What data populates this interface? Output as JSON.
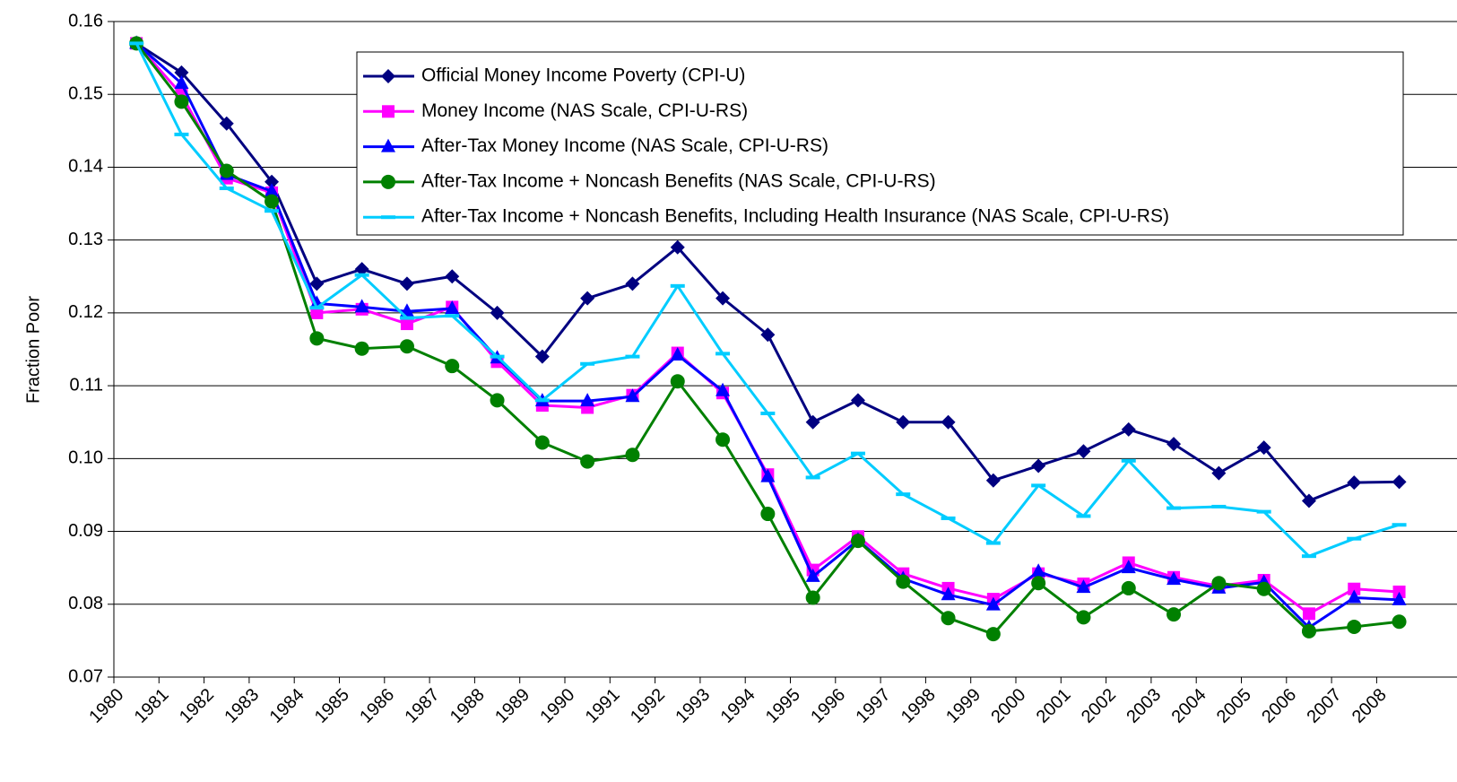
{
  "chart_data": {
    "type": "line",
    "y_label": "Fraction Poor",
    "categories": [
      "1980",
      "1981",
      "1982",
      "1983",
      "1984",
      "1985",
      "1986",
      "1987",
      "1988",
      "1989",
      "1990",
      "1991",
      "1992",
      "1993",
      "1994",
      "1995",
      "1996",
      "1997",
      "1998",
      "1999",
      "2000",
      "2001",
      "2002",
      "2003",
      "2004",
      "2005",
      "2006",
      "2007",
      "2008"
    ],
    "ylim": [
      0.07,
      0.16
    ],
    "yticks": [
      0.07,
      0.08,
      0.09,
      {
        "value": 0.1,
        "label": "0.10"
      },
      0.11,
      0.12,
      0.13,
      0.14,
      0.15,
      0.16
    ],
    "grid": true,
    "legend": "top-right",
    "series": [
      {
        "name": "Official Money Income Poverty (CPI-U)",
        "color": "#000080",
        "marker": "diamond",
        "values": [
          0.157,
          0.153,
          0.146,
          0.138,
          0.124,
          0.126,
          0.124,
          0.125,
          0.12,
          0.114,
          0.122,
          0.124,
          0.129,
          0.122,
          0.117,
          0.105,
          0.108,
          0.105,
          0.105,
          0.097,
          0.099,
          0.101,
          0.104,
          0.102,
          0.098,
          0.1015,
          0.0942,
          0.0967,
          0.0968
        ]
      },
      {
        "name": "Money Income (NAS Scale, CPI-U-RS)",
        "color": "#ff00ff",
        "marker": "square",
        "values": [
          0.157,
          0.15,
          0.1385,
          0.1365,
          0.12,
          0.1205,
          0.1185,
          0.1208,
          0.1133,
          0.1073,
          0.107,
          0.1087,
          0.1145,
          0.109,
          0.0978,
          0.0847,
          0.0893,
          0.0842,
          0.0822,
          0.0807,
          0.0842,
          0.0828,
          0.0857,
          0.0837,
          0.0825,
          0.0833,
          0.0787,
          0.0821,
          0.0817
        ]
      },
      {
        "name": "After-Tax Money Income (NAS Scale, CPI-U-RS)",
        "color": "#0000ff",
        "marker": "triangle",
        "values": [
          0.157,
          0.1515,
          0.139,
          0.1367,
          0.1213,
          0.1208,
          0.1202,
          0.1206,
          0.1138,
          0.1079,
          0.1079,
          0.1085,
          0.1142,
          0.1093,
          0.0975,
          0.0838,
          0.0888,
          0.0835,
          0.0813,
          0.0799,
          0.0845,
          0.0823,
          0.085,
          0.0834,
          0.0822,
          0.083,
          0.0768,
          0.0809,
          0.0806
        ]
      },
      {
        "name": "After-Tax Income + Noncash Benefits (NAS Scale, CPI-U-RS)",
        "color": "#008000",
        "marker": "circle",
        "values": [
          0.157,
          0.149,
          0.1395,
          0.1353,
          0.1165,
          0.1151,
          0.1154,
          0.1127,
          0.108,
          0.1022,
          0.0996,
          0.1005,
          0.1106,
          0.1026,
          0.0924,
          0.0809,
          0.0887,
          0.0831,
          0.0781,
          0.0759,
          0.0829,
          0.0782,
          0.0822,
          0.0786,
          0.0829,
          0.0821,
          0.0763,
          0.0769,
          0.0776
        ]
      },
      {
        "name": "After-Tax Income + Noncash Benefits, Including Health Insurance (NAS Scale, CPI-U-RS)",
        "color": "#00ccff",
        "marker": "dash",
        "values": [
          0.157,
          0.1445,
          0.1371,
          0.134,
          0.1207,
          0.1252,
          0.1193,
          0.1196,
          0.114,
          0.108,
          0.113,
          0.114,
          0.1237,
          0.1144,
          0.1062,
          0.0974,
          0.1007,
          0.0951,
          0.0918,
          0.0884,
          0.0963,
          0.0921,
          0.0997,
          0.0932,
          0.0934,
          0.0927,
          0.0866,
          0.089,
          0.0909
        ]
      }
    ]
  }
}
